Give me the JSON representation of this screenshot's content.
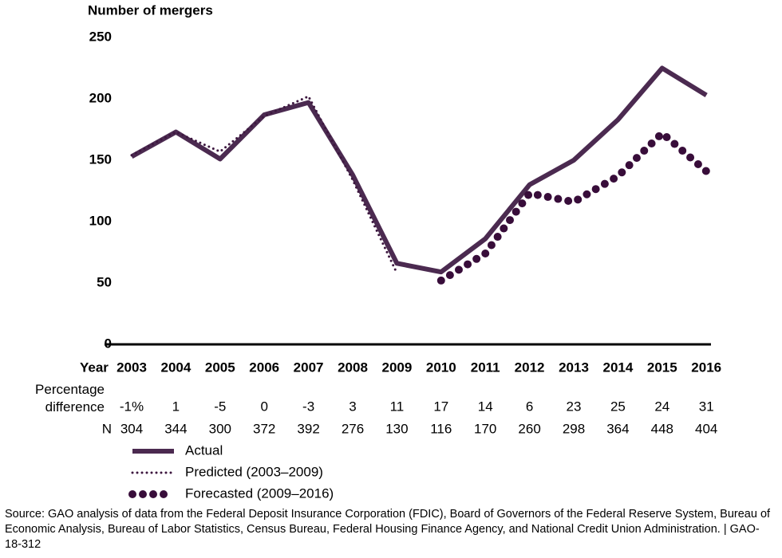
{
  "chart_data": {
    "type": "line",
    "y_axis_label": "Number of mergers",
    "x_axis_label": "Year",
    "categories": [
      "2003",
      "2004",
      "2005",
      "2006",
      "2007",
      "2008",
      "2009",
      "2010",
      "2011",
      "2012",
      "2013",
      "2014",
      "2015",
      "2016"
    ],
    "series": [
      {
        "name": "Actual",
        "color": "#4b2a50",
        "style": "solid",
        "values": [
          153,
          173,
          151,
          187,
          197,
          138,
          66,
          59,
          86,
          130,
          150,
          183,
          225,
          203
        ]
      },
      {
        "name": "Predicted (2003–2009)",
        "color": "#3d173f",
        "style": "dotted",
        "values": [
          154,
          173,
          157,
          186,
          202,
          134,
          58,
          null,
          null,
          null,
          null,
          null,
          null,
          null
        ]
      },
      {
        "name": "Forecasted (2009–2016)",
        "color": "#380d3a",
        "style": "dots",
        "values": [
          null,
          null,
          null,
          null,
          null,
          null,
          null,
          52,
          74,
          123,
          116,
          137,
          172,
          141
        ]
      }
    ],
    "ylim": [
      0,
      250
    ],
    "yticks": [
      0,
      50,
      100,
      150,
      200,
      250
    ],
    "grid": false,
    "percentage_difference": {
      "label": "Percentage difference",
      "values": [
        {
          "value": -1,
          "label": "-1%"
        },
        1,
        -5,
        0,
        -3,
        3,
        11,
        17,
        14,
        6,
        23,
        25,
        24,
        31
      ]
    },
    "n_row": {
      "label": "N",
      "values": [
        304,
        344,
        300,
        372,
        392,
        276,
        130,
        116,
        170,
        260,
        298,
        364,
        448,
        404
      ]
    },
    "source": "Source: GAO analysis of data from the Federal Deposit Insurance Corporation (FDIC), Board of Governors of the Federal Reserve System, Bureau of Economic Analysis, Bureau of Labor Statistics, Census Bureau, Federal Housing Finance Agency, and National Credit Union Administration. | GAO-18-312"
  }
}
